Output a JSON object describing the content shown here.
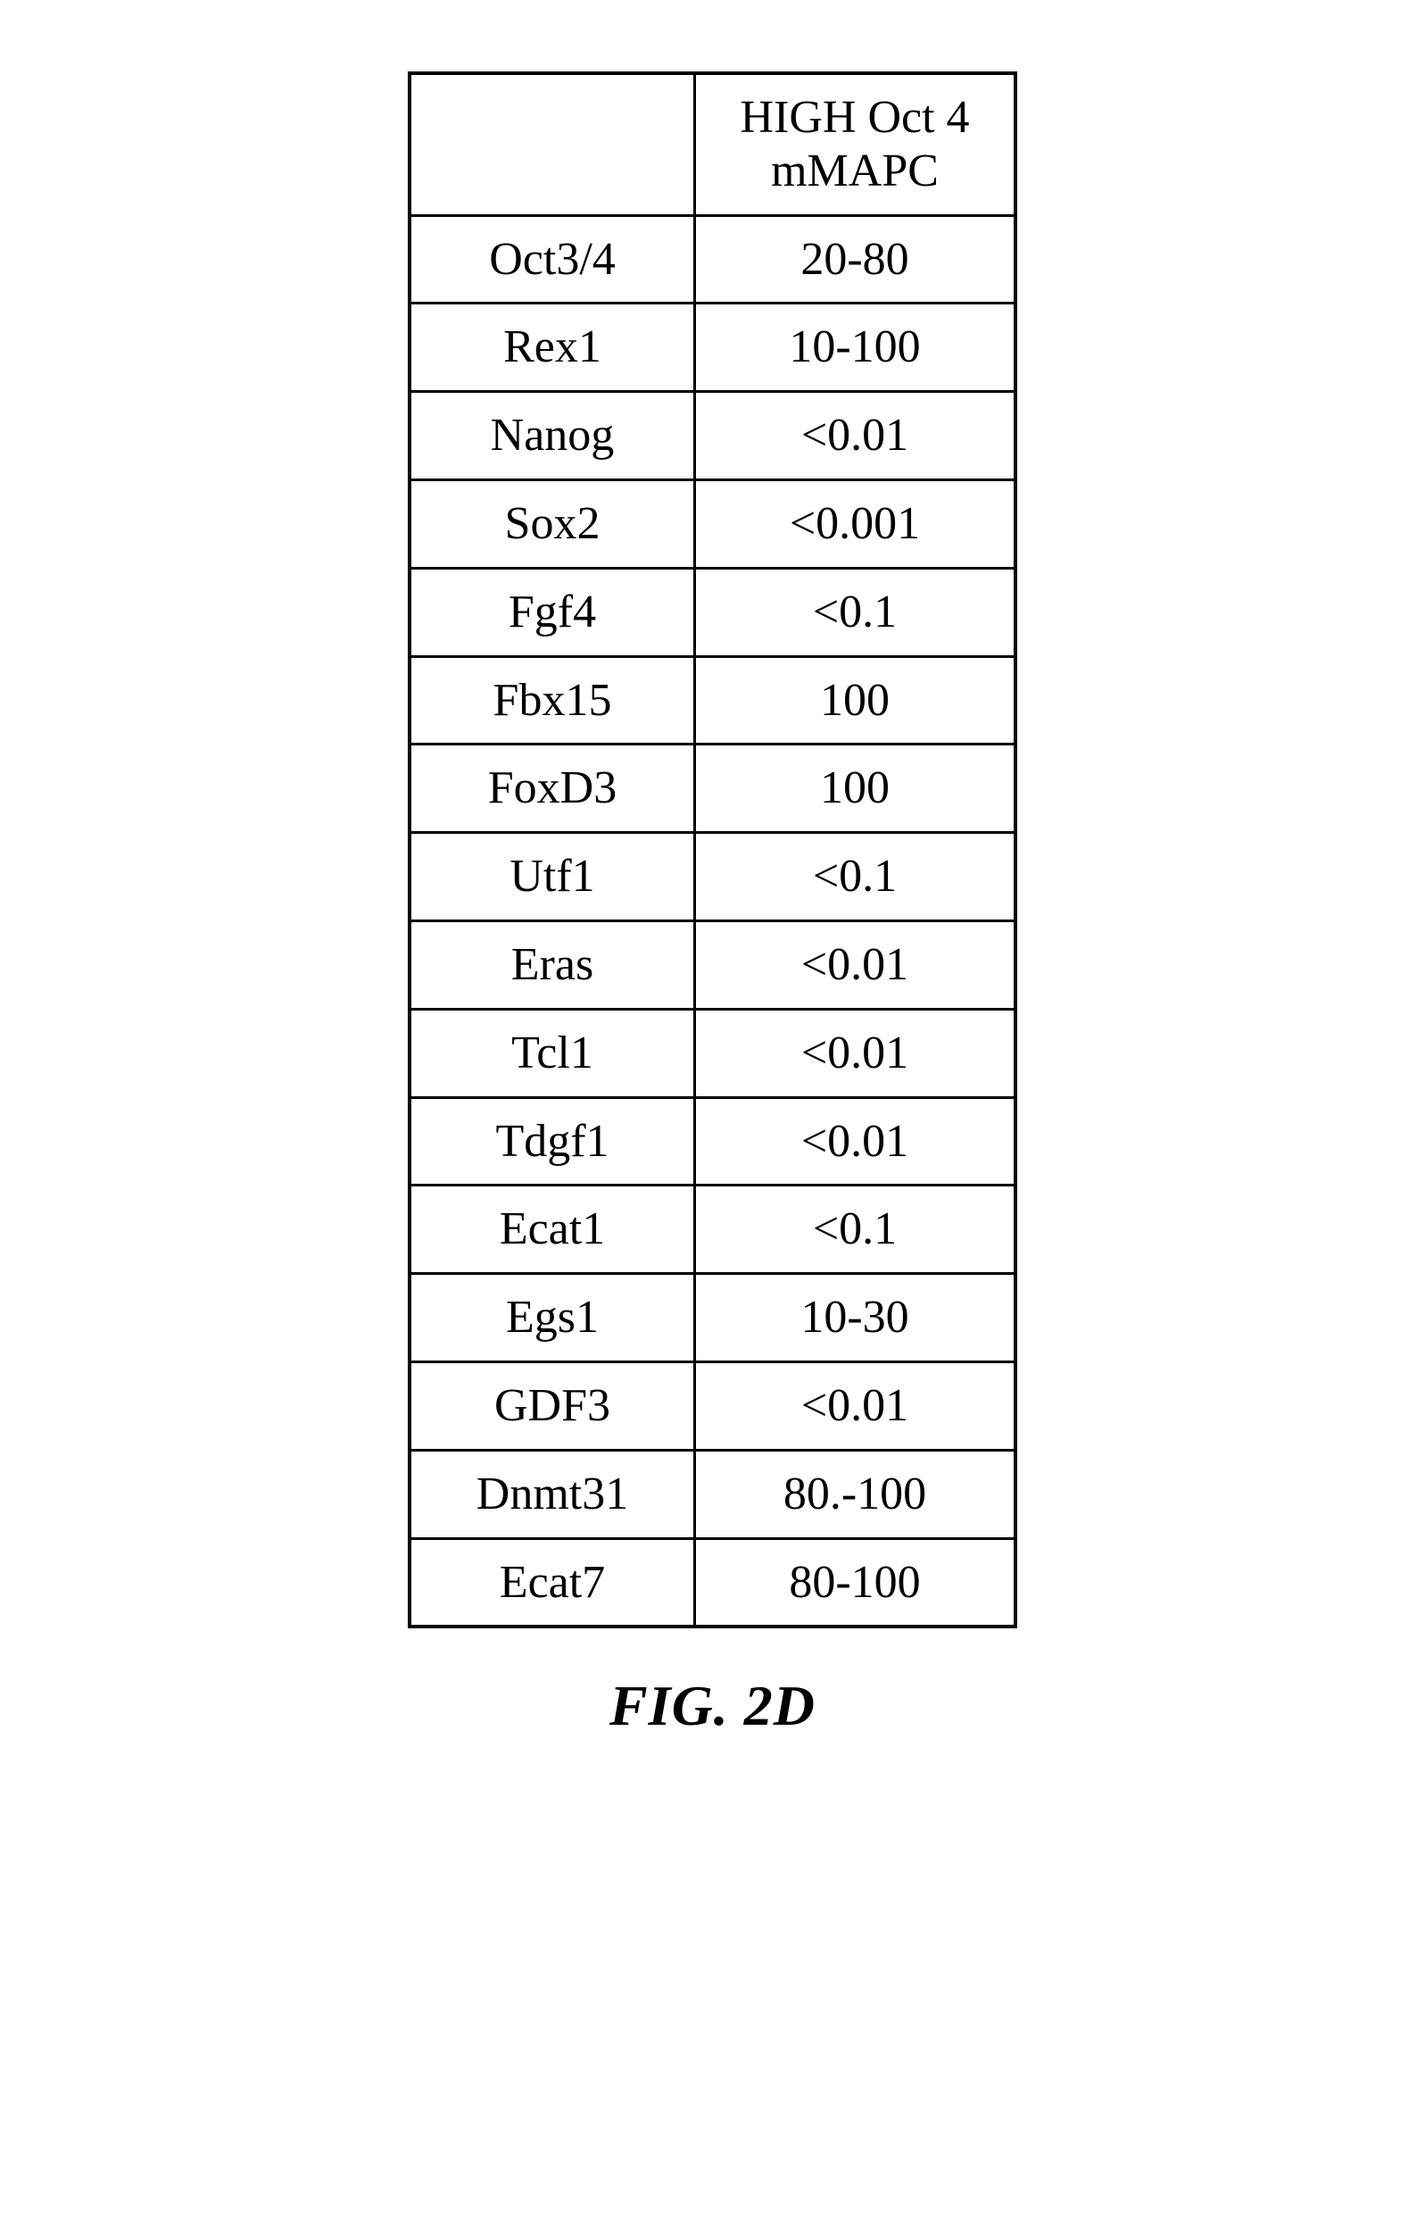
{
  "table": {
    "header": {
      "col1": "",
      "col2_line1": "HIGH Oct 4",
      "col2_line2": "mMAPC"
    },
    "rows": [
      {
        "label": "Oct3/4",
        "value": "20-80"
      },
      {
        "label": "Rex1",
        "value": "10-100"
      },
      {
        "label": "Nanog",
        "value": "<0.01"
      },
      {
        "label": "Sox2",
        "value": "<0.001"
      },
      {
        "label": "Fgf4",
        "value": "<0.1"
      },
      {
        "label": "Fbx15",
        "value": "100"
      },
      {
        "label": "FoxD3",
        "value": "100"
      },
      {
        "label": "Utf1",
        "value": "<0.1"
      },
      {
        "label": "Eras",
        "value": "<0.01"
      },
      {
        "label": "Tcl1",
        "value": "<0.01"
      },
      {
        "label": "Tdgf1",
        "value": "<0.01"
      },
      {
        "label": "Ecat1",
        "value": "<0.1"
      },
      {
        "label": "Egs1",
        "value": "10-30"
      },
      {
        "label": "GDF3",
        "value": "<0.01"
      },
      {
        "label": "Dnmt31",
        "value": "80.-100"
      },
      {
        "label": "Ecat7",
        "value": "80-100"
      }
    ],
    "caption": "FIG. 2D",
    "colors": {
      "border": "#000000",
      "background": "#ffffff",
      "text": "#000000"
    },
    "font_sizes": {
      "cell": 52,
      "caption": 64
    }
  }
}
